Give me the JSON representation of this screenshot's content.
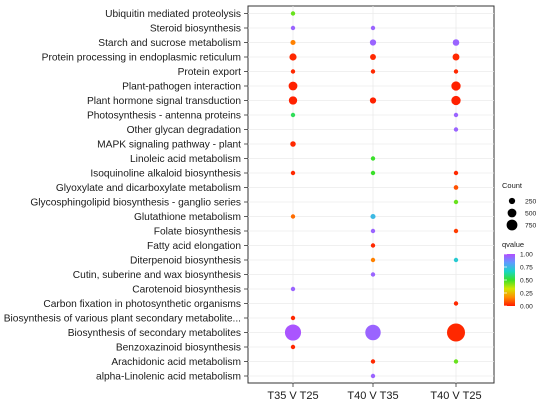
{
  "chart_data": {
    "type": "scatter",
    "chart_kind": "dot plot (bubble)",
    "categories": [
      "Ubiquitin mediated proteolysis",
      "Steroid biosynthesis",
      "Starch and sucrose metabolism",
      "Protein processing in endoplasmic reticulum",
      "Protein export",
      "Plant-pathogen interaction",
      "Plant hormone signal transduction",
      "Photosynthesis - antenna proteins",
      "Other glycan degradation",
      "MAPK signaling pathway - plant",
      "Linoleic acid metabolism",
      "Isoquinoline alkaloid biosynthesis",
      "Glyoxylate and dicarboxylate metabolism",
      "Glycosphingolipid biosynthesis - ganglio series",
      "Glutathione metabolism",
      "Folate biosynthesis",
      "Fatty acid elongation",
      "Diterpenoid biosynthesis",
      "Cutin, suberine and wax biosynthesis",
      "Carotenoid biosynthesis",
      "Carbon fixation in photosynthetic organisms",
      "Biosynthesis of various plant secondary metabolite...",
      "Biosynthesis of secondary metabolites",
      "Benzoxazinoid biosynthesis",
      "Arachidonic acid metabolism",
      "alpha-Linolenic acid metabolism"
    ],
    "x_categories": [
      "T35 V T25",
      "T40 V T35",
      "T40 V T25"
    ],
    "points": [
      {
        "x": "T35 V T25",
        "y": "Ubiquitin mediated proteolysis",
        "count": 30,
        "qvalue": 0.45
      },
      {
        "x": "T35 V T25",
        "y": "Steroid biosynthesis",
        "count": 15,
        "qvalue": 0.95
      },
      {
        "x": "T35 V T25",
        "y": "Starch and sucrose metabolism",
        "count": 60,
        "qvalue": 0.15
      },
      {
        "x": "T35 V T25",
        "y": "Protein processing in endoplasmic reticulum",
        "count": 120,
        "qvalue": 0.02
      },
      {
        "x": "T35 V T25",
        "y": "Protein export",
        "count": 40,
        "qvalue": 0.02
      },
      {
        "x": "T35 V T25",
        "y": "Plant-pathogen interaction",
        "count": 180,
        "qvalue": 0.01
      },
      {
        "x": "T35 V T25",
        "y": "Plant hormone signal transduction",
        "count": 160,
        "qvalue": 0.01
      },
      {
        "x": "T35 V T25",
        "y": "Photosynthesis - antenna proteins",
        "count": 15,
        "qvalue": 0.55
      },
      {
        "x": "T35 V T25",
        "y": "MAPK signaling pathway - plant",
        "count": 70,
        "qvalue": 0.02
      },
      {
        "x": "T35 V T25",
        "y": "Isoquinoline alkaloid biosynthesis",
        "count": 35,
        "qvalue": 0.02
      },
      {
        "x": "T35 V T25",
        "y": "Glutathione metabolism",
        "count": 45,
        "qvalue": 0.12
      },
      {
        "x": "T35 V T25",
        "y": "Carotenoid biosynthesis",
        "count": 15,
        "qvalue": 0.95
      },
      {
        "x": "T35 V T25",
        "y": "Biosynthesis of various plant secondary metabolite...",
        "count": 35,
        "qvalue": 0.02
      },
      {
        "x": "T35 V T25",
        "y": "Biosynthesis of secondary metabolites",
        "count": 600,
        "qvalue": 0.98
      },
      {
        "x": "T35 V T25",
        "y": "Benzoxazinoid biosynthesis",
        "count": 25,
        "qvalue": 0.02
      },
      {
        "x": "T40 V T35",
        "y": "Steroid biosynthesis",
        "count": 15,
        "qvalue": 0.95
      },
      {
        "x": "T40 V T35",
        "y": "Starch and sucrose metabolism",
        "count": 90,
        "qvalue": 0.95
      },
      {
        "x": "T40 V T35",
        "y": "Protein processing in endoplasmic reticulum",
        "count": 80,
        "qvalue": 0.02
      },
      {
        "x": "T40 V T35",
        "y": "Protein export",
        "count": 40,
        "qvalue": 0.02
      },
      {
        "x": "T40 V T35",
        "y": "Plant hormone signal transduction",
        "count": 90,
        "qvalue": 0.01
      },
      {
        "x": "T40 V T35",
        "y": "Linoleic acid metabolism",
        "count": 15,
        "qvalue": 0.5
      },
      {
        "x": "T40 V T35",
        "y": "Isoquinoline alkaloid biosynthesis",
        "count": 30,
        "qvalue": 0.5
      },
      {
        "x": "T40 V T35",
        "y": "Glutathione metabolism",
        "count": 60,
        "qvalue": 0.75
      },
      {
        "x": "T40 V T35",
        "y": "Folate biosynthesis",
        "count": 20,
        "qvalue": 0.95
      },
      {
        "x": "T40 V T35",
        "y": "Fatty acid elongation",
        "count": 25,
        "qvalue": 0.02
      },
      {
        "x": "T40 V T35",
        "y": "Diterpenoid biosynthesis",
        "count": 20,
        "qvalue": 0.15
      },
      {
        "x": "T40 V T35",
        "y": "Cutin, suberine and wax biosynthesis",
        "count": 15,
        "qvalue": 0.95
      },
      {
        "x": "T40 V T35",
        "y": "Biosynthesis of secondary metabolites",
        "count": 550,
        "qvalue": 0.95
      },
      {
        "x": "T40 V T35",
        "y": "Arachidonic acid metabolism",
        "count": 25,
        "qvalue": 0.02
      },
      {
        "x": "T40 V T35",
        "y": "alpha-Linolenic acid metabolism",
        "count": 25,
        "qvalue": 0.95
      },
      {
        "x": "T40 V T25",
        "y": "Starch and sucrose metabolism",
        "count": 100,
        "qvalue": 0.95
      },
      {
        "x": "T40 V T25",
        "y": "Protein processing in endoplasmic reticulum",
        "count": 110,
        "qvalue": 0.02
      },
      {
        "x": "T40 V T25",
        "y": "Protein export",
        "count": 40,
        "qvalue": 0.02
      },
      {
        "x": "T40 V T25",
        "y": "Plant-pathogen interaction",
        "count": 200,
        "qvalue": 0.01
      },
      {
        "x": "T40 V T25",
        "y": "Plant hormone signal transduction",
        "count": 200,
        "qvalue": 0.01
      },
      {
        "x": "T40 V T25",
        "y": "Photosynthesis - antenna proteins",
        "count": 20,
        "qvalue": 0.95
      },
      {
        "x": "T40 V T25",
        "y": "Other glycan degradation",
        "count": 25,
        "qvalue": 0.95
      },
      {
        "x": "T40 V T25",
        "y": "Isoquinoline alkaloid biosynthesis",
        "count": 35,
        "qvalue": 0.02
      },
      {
        "x": "T40 V T25",
        "y": "Glyoxylate and dicarboxylate metabolism",
        "count": 50,
        "qvalue": 0.08
      },
      {
        "x": "T40 V T25",
        "y": "Glycosphingolipid biosynthesis - ganglio series",
        "count": 15,
        "qvalue": 0.45
      },
      {
        "x": "T40 V T25",
        "y": "Folate biosynthesis",
        "count": 30,
        "qvalue": 0.05
      },
      {
        "x": "T40 V T25",
        "y": "Diterpenoid biosynthesis",
        "count": 25,
        "qvalue": 0.7
      },
      {
        "x": "T40 V T25",
        "y": "Carbon fixation in photosynthetic organisms",
        "count": 45,
        "qvalue": 0.02
      },
      {
        "x": "T40 V T25",
        "y": "Biosynthesis of secondary metabolites",
        "count": 750,
        "qvalue": 0.02
      },
      {
        "x": "T40 V T25",
        "y": "Arachidonic acid metabolism",
        "count": 25,
        "qvalue": 0.45
      }
    ],
    "size_legend": {
      "title": "Count",
      "values": [
        250,
        500,
        750
      ],
      "labels": [
        "250",
        "500",
        "750"
      ]
    },
    "color_legend": {
      "title": "qvalue",
      "ticks": [
        1.0,
        0.75,
        0.5,
        0.25,
        0.0
      ],
      "tick_labels": [
        "1.00",
        "0.75",
        "0.50",
        "0.25",
        "0.00"
      ],
      "range": [
        0,
        1
      ],
      "colors": [
        "#ff1a00",
        "#ff8c00",
        "#d4e600",
        "#3ae02a",
        "#19d6c6",
        "#5f9bff",
        "#b44cff"
      ]
    },
    "grid": true,
    "legend_position": "right"
  }
}
